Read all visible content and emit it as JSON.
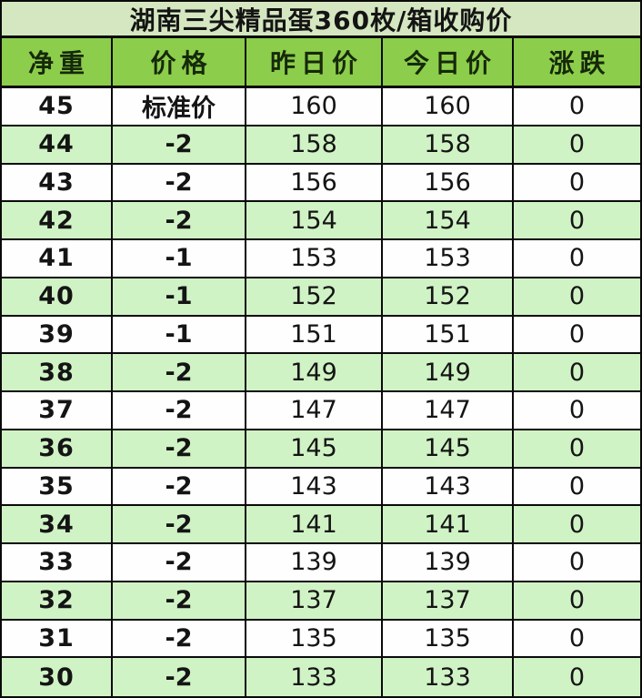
{
  "chart_data": {
    "type": "table",
    "title": "湖南三尖精品蛋360枚/箱收购价",
    "columns": [
      "净重",
      "价格",
      "昨日价",
      "今日价",
      "涨跌"
    ],
    "rows": [
      {
        "net_weight": "45",
        "price": "标准价",
        "yesterday": "160",
        "today": "160",
        "change": "0"
      },
      {
        "net_weight": "44",
        "price": "-2",
        "yesterday": "158",
        "today": "158",
        "change": "0"
      },
      {
        "net_weight": "43",
        "price": "-2",
        "yesterday": "156",
        "today": "156",
        "change": "0"
      },
      {
        "net_weight": "42",
        "price": "-2",
        "yesterday": "154",
        "today": "154",
        "change": "0"
      },
      {
        "net_weight": "41",
        "price": "-1",
        "yesterday": "153",
        "today": "153",
        "change": "0"
      },
      {
        "net_weight": "40",
        "price": "-1",
        "yesterday": "152",
        "today": "152",
        "change": "0"
      },
      {
        "net_weight": "39",
        "price": "-1",
        "yesterday": "151",
        "today": "151",
        "change": "0"
      },
      {
        "net_weight": "38",
        "price": "-2",
        "yesterday": "149",
        "today": "149",
        "change": "0"
      },
      {
        "net_weight": "37",
        "price": "-2",
        "yesterday": "147",
        "today": "147",
        "change": "0"
      },
      {
        "net_weight": "36",
        "price": "-2",
        "yesterday": "145",
        "today": "145",
        "change": "0"
      },
      {
        "net_weight": "35",
        "price": "-2",
        "yesterday": "143",
        "today": "143",
        "change": "0"
      },
      {
        "net_weight": "34",
        "price": "-2",
        "yesterday": "141",
        "today": "141",
        "change": "0"
      },
      {
        "net_weight": "33",
        "price": "-2",
        "yesterday": "139",
        "today": "139",
        "change": "0"
      },
      {
        "net_weight": "32",
        "price": "-2",
        "yesterday": "137",
        "today": "137",
        "change": "0"
      },
      {
        "net_weight": "31",
        "price": "-2",
        "yesterday": "135",
        "today": "135",
        "change": "0"
      },
      {
        "net_weight": "30",
        "price": "-2",
        "yesterday": "133",
        "today": "133",
        "change": "0"
      }
    ],
    "row_striping": "white/green alternating starting white",
    "legend": "none",
    "grid": "on"
  },
  "colors": {
    "title_bg": "#d5e7c0",
    "header_bg": "#8ccd4b",
    "row_bg": "#fefefe",
    "row_alt_bg": "#d0f3c5",
    "border": "#0a0a0a",
    "text": "#141414",
    "header_text": "#16290a"
  }
}
